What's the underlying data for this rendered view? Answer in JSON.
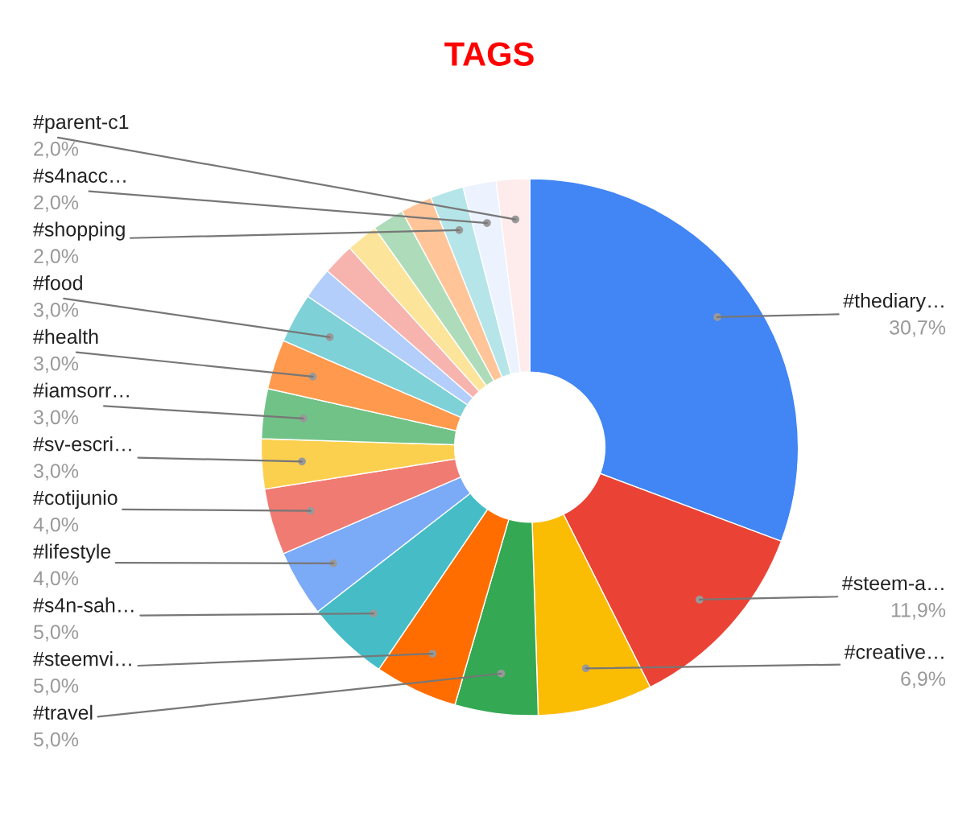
{
  "chart_data": {
    "type": "donut",
    "title": "TAGS",
    "categories": [
      "#thediary…",
      "#steem-a…",
      "#creative…",
      "#travel",
      "#steemvi…",
      "#s4n-sah…",
      "#lifestyle",
      "#cotijunio",
      "#sv-escri…",
      "#iamsorr…",
      "#health",
      "#food",
      null,
      null,
      null,
      null,
      null,
      "#shopping",
      "#s4nacc…",
      "#parent-c1"
    ],
    "values": [
      30.7,
      11.9,
      6.9,
      5.0,
      5.0,
      5.0,
      4.0,
      4.0,
      3.0,
      3.0,
      3.0,
      3.0,
      1.9,
      1.9,
      1.9,
      1.9,
      1.9,
      2.0,
      2.0,
      2.0
    ],
    "value_labels": [
      "30,7%",
      "11,9%",
      "6,9%",
      "5,0%",
      "5,0%",
      "5,0%",
      "4,0%",
      "4,0%",
      "3,0%",
      "3,0%",
      "3,0%",
      "3,0%",
      null,
      null,
      null,
      null,
      null,
      "2,0%",
      "2,0%",
      "2,0%"
    ],
    "colors": [
      "#4285f4",
      "#ea4335",
      "#fbbc04",
      "#34a853",
      "#ff6d01",
      "#46bdc6",
      "#7baaf7",
      "#f07b72",
      "#fcd04f",
      "#71c287",
      "#ff994d",
      "#7ed1d7",
      "#b3cefb",
      "#f7b4ae",
      "#fde49b",
      "#aedcba",
      "#ffc599",
      "#b5e5e8",
      "#ecf2fe",
      "#fdeceb"
    ]
  }
}
